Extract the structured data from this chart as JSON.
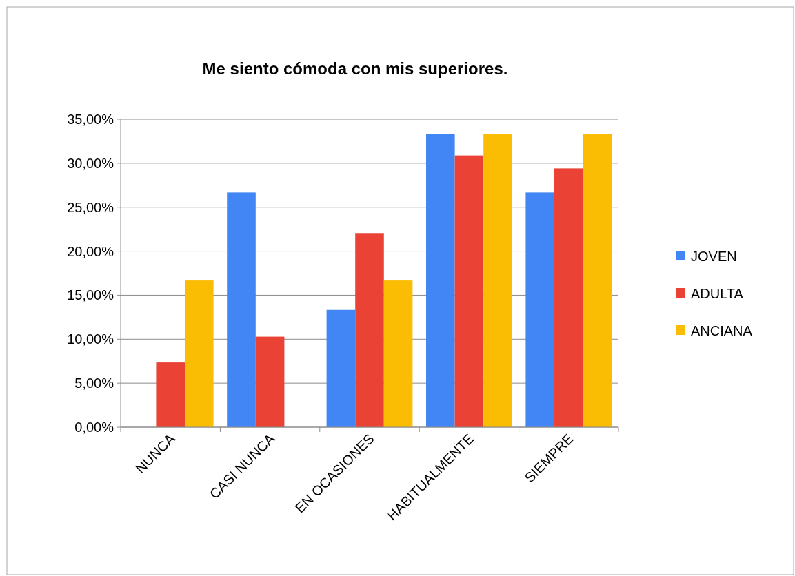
{
  "chart_data": {
    "type": "bar",
    "title": "Me siento cómoda con mis superiores.",
    "categories": [
      "NUNCA",
      "CASI NUNCA",
      "EN OCASIONES",
      "HABITUALMENTE",
      "SIEMPRE"
    ],
    "series": [
      {
        "name": "JOVEN",
        "color": "#4285f4",
        "values": [
          0,
          26.67,
          13.33,
          33.33,
          26.67
        ]
      },
      {
        "name": "ADULTA",
        "color": "#ea4335",
        "values": [
          7.35,
          10.29,
          22.06,
          30.88,
          29.41
        ]
      },
      {
        "name": "ANCIANA",
        "color": "#fbbc04",
        "values": [
          16.67,
          0,
          16.67,
          33.33,
          33.33
        ]
      }
    ],
    "ylim": [
      0,
      35
    ],
    "yticks": [
      {
        "value": 0,
        "label": "0,00%"
      },
      {
        "value": 5,
        "label": "5,00%"
      },
      {
        "value": 10,
        "label": "10,00%"
      },
      {
        "value": 15,
        "label": "15,00%"
      },
      {
        "value": 20,
        "label": "20,00%"
      },
      {
        "value": 25,
        "label": "25,00%"
      },
      {
        "value": 30,
        "label": "30,00%"
      },
      {
        "value": 35,
        "label": "35,00%"
      }
    ],
    "grid": "y",
    "legend": "right"
  }
}
